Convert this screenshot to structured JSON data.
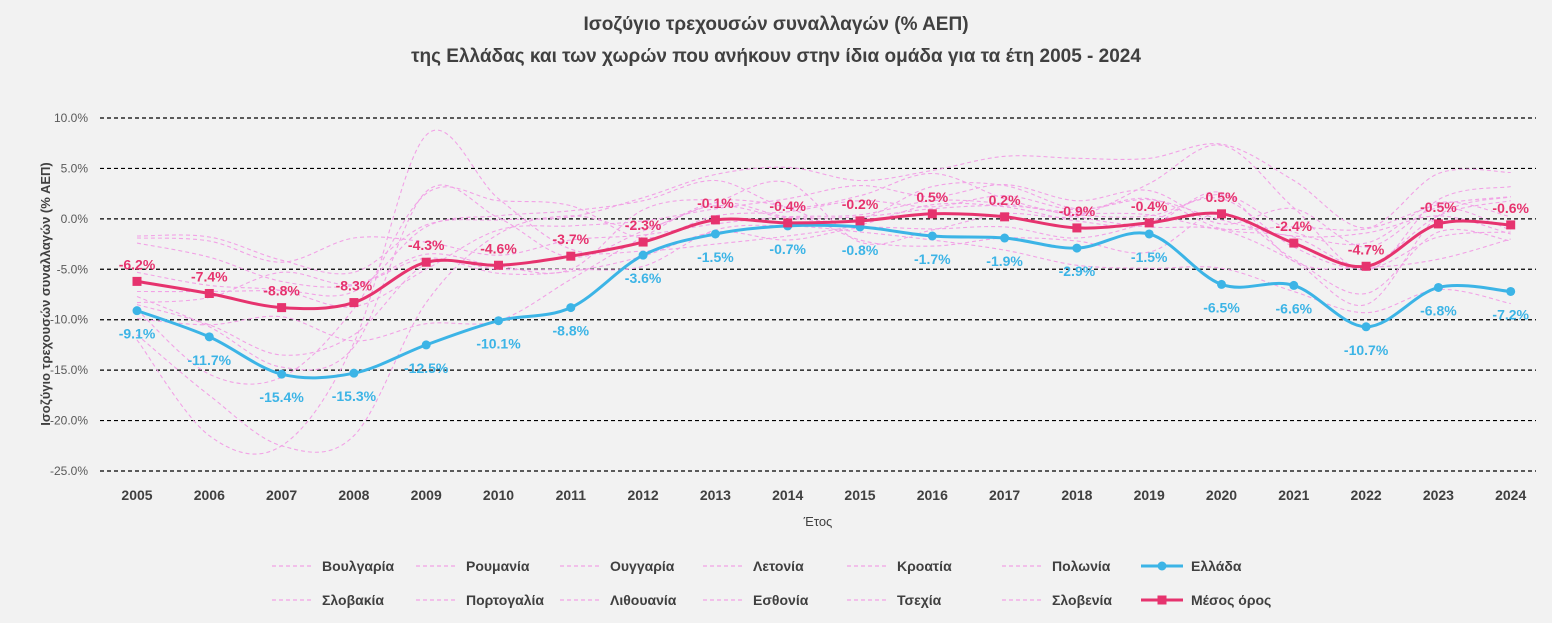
{
  "chart_data": {
    "type": "line",
    "title_line1": "Ισοζύγιο τρεχουσών συναλλαγών (% ΑΕΠ)",
    "title_line2": "της Ελλάδας και των χωρών που ανήκουν στην ίδια ομάδα για τα έτη 2005 - 2024",
    "xlabel": "Έτος",
    "ylabel": "Ισοζύγιο τρεχουσών συναλλαγών (% ΑΕΠ)",
    "ylim": [
      -25,
      10
    ],
    "y_ticks": [
      "10.0%",
      "5.0%",
      "0.0%",
      "-5.0%",
      "-10.0%",
      "-15.0%",
      "-20.0%",
      "-25.0%"
    ],
    "y_tick_values": [
      10,
      5,
      0,
      -5,
      -10,
      -15,
      -20,
      -25
    ],
    "categories": [
      "2005",
      "2006",
      "2007",
      "2008",
      "2009",
      "2010",
      "2011",
      "2012",
      "2013",
      "2014",
      "2015",
      "2016",
      "2017",
      "2018",
      "2019",
      "2020",
      "2021",
      "2022",
      "2023",
      "2024"
    ],
    "colors": {
      "greece": "#3cb4e6",
      "average": "#e6336e",
      "countries": "#f2a2e6",
      "grid": "#000000",
      "background": "#f2f2f2"
    },
    "series": [
      {
        "name": "Βουλγαρία",
        "style": "dashed",
        "values": [
          -11.5,
          -17.5,
          -22.5,
          -21.5,
          -8.3,
          -1.5,
          0.3,
          -0.9,
          1.3,
          0.1,
          0.0,
          3.2,
          3.3,
          1.0,
          1.9,
          -0.1,
          -1.7,
          -1.4,
          0.3,
          -1.5
        ]
      },
      {
        "name": "Ρουμανία",
        "style": "dashed",
        "values": [
          -8.5,
          -10.5,
          -13.5,
          -11.5,
          -4.5,
          -5.0,
          -5.0,
          -4.7,
          -1.1,
          -0.7,
          -1.3,
          -2.1,
          -3.1,
          -4.6,
          -4.9,
          -4.9,
          -7.2,
          -9.3,
          -7.0,
          -8.4
        ]
      },
      {
        "name": "Ουγγαρία",
        "style": "dashed",
        "values": [
          -7.2,
          -7.2,
          -7.1,
          -7.2,
          -0.8,
          0.3,
          0.8,
          1.8,
          3.8,
          1.2,
          2.3,
          4.5,
          2.0,
          0.2,
          -0.8,
          -1.1,
          -4.2,
          -8.5,
          0.3,
          2.2
        ]
      },
      {
        "name": "Λετονία",
        "style": "dashed",
        "values": [
          -12.0,
          -21.5,
          -22.5,
          -12.3,
          8.3,
          2.0,
          -3.0,
          -3.2,
          -2.5,
          -1.7,
          -0.6,
          1.4,
          1.2,
          -0.2,
          -0.6,
          2.6,
          -4.2,
          -4.8,
          -4.0,
          -2.0
        ]
      },
      {
        "name": "Κροατία",
        "style": "dashed",
        "values": [
          -5.3,
          -6.6,
          -7.1,
          -8.7,
          -5.0,
          -1.1,
          -0.7,
          -0.2,
          1.0,
          2.0,
          3.3,
          2.2,
          3.4,
          1.8,
          2.8,
          -0.5,
          1.0,
          -2.8,
          1.1,
          -1.1
        ]
      },
      {
        "name": "Πολωνία",
        "style": "dashed",
        "values": [
          -2.4,
          -3.8,
          -6.2,
          -6.6,
          -3.9,
          -5.4,
          -5.2,
          -3.7,
          -1.3,
          -2.1,
          -0.9,
          -1.0,
          -0.8,
          -1.9,
          -0.3,
          2.4,
          -1.3,
          -2.4,
          1.6,
          0.2
        ]
      },
      {
        "name": "Σλοβακία",
        "style": "dashed",
        "values": [
          -8.3,
          -7.8,
          -5.3,
          -6.5,
          -3.5,
          -4.7,
          -5.0,
          0.9,
          1.9,
          1.1,
          -2.1,
          -2.7,
          -1.9,
          -2.2,
          -3.3,
          0.6,
          -4.0,
          -7.4,
          -1.3,
          -2.2
        ]
      },
      {
        "name": "Πορτογαλία",
        "style": "dashed",
        "values": [
          -9.9,
          -10.5,
          -9.7,
          -12.1,
          -10.4,
          -10.1,
          -6.0,
          -1.8,
          1.6,
          0.2,
          0.2,
          1.0,
          1.3,
          0.6,
          0.4,
          -1.0,
          -0.8,
          -1.0,
          1.4,
          2.2
        ]
      },
      {
        "name": "Λιθουανία",
        "style": "dashed",
        "values": [
          -7.7,
          -10.7,
          -14.7,
          -12.7,
          2.7,
          0.1,
          -3.8,
          -1.2,
          1.6,
          3.6,
          -2.3,
          -1.1,
          0.5,
          0.3,
          3.5,
          7.3,
          1.1,
          -5.1,
          1.9,
          3.2
        ]
      },
      {
        "name": "Εσθονία",
        "style": "dashed",
        "values": [
          -9.0,
          -15.4,
          -15.7,
          -8.9,
          2.5,
          1.8,
          1.3,
          -1.9,
          0.3,
          0.7,
          1.8,
          1.2,
          2.3,
          0.9,
          2.0,
          -1.0,
          -1.8,
          -4.9,
          -1.8,
          -1.3
        ]
      },
      {
        "name": "Τσεχία",
        "style": "dashed",
        "values": [
          -1.9,
          -2.2,
          -4.3,
          -1.9,
          -2.3,
          -3.6,
          -2.1,
          -1.6,
          -0.5,
          0.2,
          0.4,
          1.8,
          1.5,
          0.4,
          0.3,
          2.0,
          -2.8,
          -4.7,
          0.3,
          1.8
        ]
      },
      {
        "name": "Σλοβενία",
        "style": "dashed",
        "values": [
          -1.7,
          -1.8,
          -4.1,
          -5.3,
          -0.6,
          -0.1,
          0.2,
          2.1,
          4.4,
          5.1,
          3.8,
          4.8,
          6.2,
          6.0,
          6.0,
          7.4,
          3.8,
          -0.9,
          4.5,
          4.6
        ]
      },
      {
        "name": "Ελλάδα",
        "style": "solid-marker",
        "values": [
          -9.1,
          -11.7,
          -15.4,
          -15.3,
          -12.5,
          -10.1,
          -8.8,
          -3.6,
          -1.5,
          -0.7,
          -0.8,
          -1.7,
          -1.9,
          -2.9,
          -1.5,
          -6.5,
          -6.6,
          -10.7,
          -6.8,
          -7.2
        ],
        "labels": [
          "-9.1%",
          "-11.7%",
          "-15.4%",
          "-15.3%",
          "-12.5%",
          "-10.1%",
          "-8.8%",
          "-3.6%",
          "-1.5%",
          "-0.7%",
          "-0.8%",
          "-1.7%",
          "-1.9%",
          "-2.9%",
          "-1.5%",
          "-6.5%",
          "-6.6%",
          "-10.7%",
          "-6.8%",
          "-7.2%"
        ]
      },
      {
        "name": "Μέσος όρος",
        "style": "solid-marker",
        "values": [
          -6.2,
          -7.4,
          -8.8,
          -8.3,
          -4.3,
          -4.6,
          -3.7,
          -2.3,
          -0.1,
          -0.4,
          -0.2,
          0.5,
          0.2,
          -0.9,
          -0.4,
          0.5,
          -2.4,
          -4.7,
          -0.5,
          -0.6
        ],
        "labels": [
          "-6.2%",
          "-7.4%",
          "-8.8%",
          "-8.3%",
          "-4.3%",
          "-4.6%",
          "-3.7%",
          "-2.3%",
          "-0.1%",
          "-0.4%",
          "-0.2%",
          "0.5%",
          "0.2%",
          "-0.9%",
          "-0.4%",
          "0.5%",
          "-2.4%",
          "-4.7%",
          "-0.5%",
          "-0.6%"
        ]
      }
    ],
    "legend": {
      "placement": "bottom",
      "row1": [
        "Βουλγαρία",
        "Ρουμανία",
        "Ουγγαρία",
        "Λετονία",
        "Κροατία",
        "Πολωνία",
        "Ελλάδα"
      ],
      "row2": [
        "Σλοβακία",
        "Πορτογαλία",
        "Λιθουανία",
        "Εσθονία",
        "Τσεχία",
        "Σλοβενία",
        "Μέσος όρος"
      ]
    }
  }
}
